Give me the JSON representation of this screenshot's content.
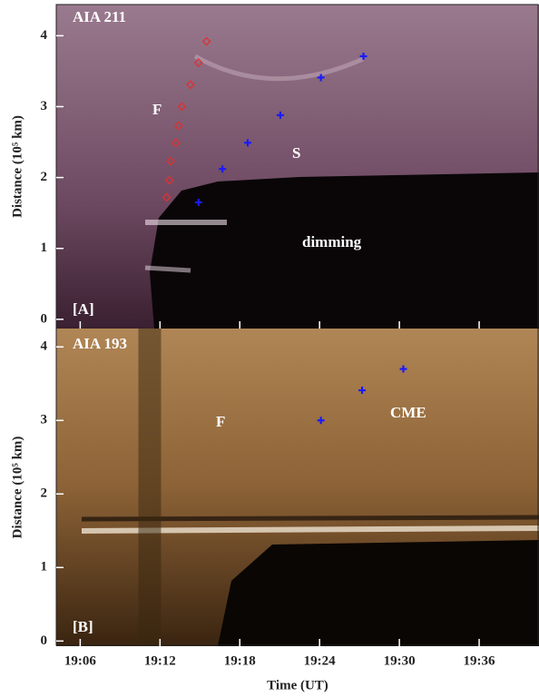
{
  "chart_data": [
    {
      "type": "scatter",
      "ylabel": "Distance (10⁵ km)",
      "xlim": [
        4.2,
        40.5
      ],
      "xticks": [
        6,
        12,
        18,
        24,
        30,
        36
      ],
      "ylim": [
        -0.13,
        4.44
      ],
      "yticks": [
        0,
        1,
        2,
        3,
        4
      ],
      "annotations": [
        "AIA 211",
        "F",
        "S",
        "dimming",
        "[A]"
      ],
      "series": [
        {
          "name": "F",
          "color": "#e03030",
          "marker": "diamond",
          "x": [
            15.5,
            14.9,
            14.3,
            13.65,
            13.4,
            13.2,
            12.8,
            12.7,
            12.5
          ],
          "values": [
            3.92,
            3.62,
            3.31,
            3.0,
            2.73,
            2.49,
            2.23,
            1.96,
            1.72
          ]
        },
        {
          "name": "S",
          "color": "#1a1aff",
          "marker": "plus",
          "x": [
            27.3,
            24.1,
            21.05,
            18.6,
            16.7,
            14.9
          ],
          "values": [
            3.71,
            3.41,
            2.88,
            2.49,
            2.12,
            1.65
          ]
        }
      ]
    },
    {
      "type": "scatter",
      "ylabel": "Distance (10⁵ km)",
      "xlabel": "Time (UT)",
      "xlim": [
        4.2,
        40.5
      ],
      "xticks": [
        {
          "value": 6,
          "label": "19:06"
        },
        {
          "value": 12,
          "label": "19:12"
        },
        {
          "value": 18,
          "label": "19:18"
        },
        {
          "value": 24,
          "label": "19:24"
        },
        {
          "value": 30,
          "label": "19:30"
        },
        {
          "value": 36,
          "label": "19:36"
        }
      ],
      "ylim": [
        -0.07,
        4.25
      ],
      "yticks": [
        0,
        1,
        2,
        3,
        4
      ],
      "annotations": [
        "AIA 193",
        "F",
        "CME",
        "[B]"
      ],
      "series": [
        {
          "name": "CME",
          "color": "#1a1aff",
          "marker": "plus",
          "x": [
            30.3,
            27.2,
            24.1
          ],
          "values": [
            3.7,
            3.41,
            3.0
          ]
        }
      ]
    }
  ]
}
